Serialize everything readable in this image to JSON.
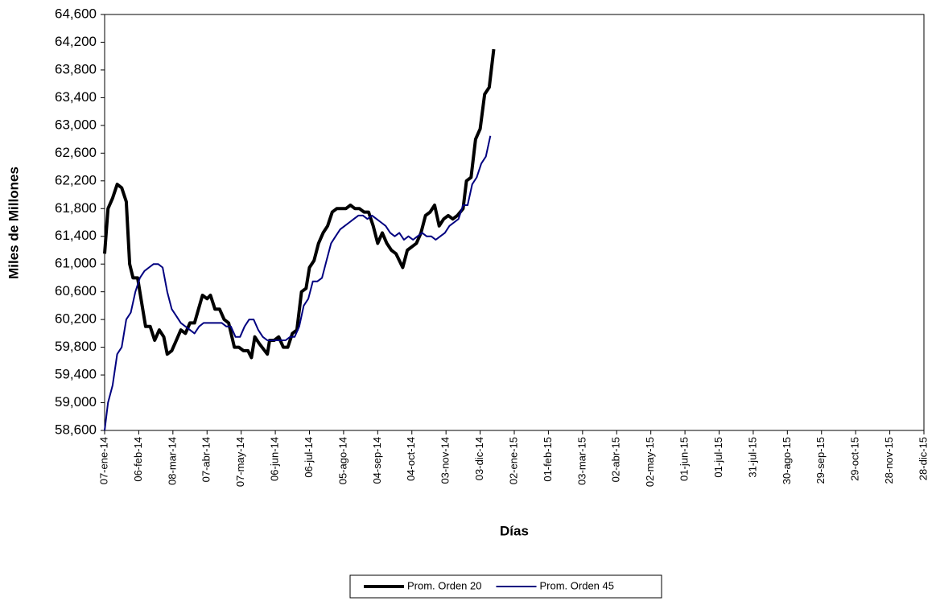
{
  "chart_data": {
    "type": "line",
    "xlabel": "Días",
    "ylabel": "Miles de Millones",
    "xlim": [
      "2014-01-07",
      "2015-12-28"
    ],
    "xticks": [
      {
        "value": "2014-01-07",
        "label": "07-ene-14"
      },
      {
        "value": "2014-02-06",
        "label": "06-feb-14"
      },
      {
        "value": "2014-03-08",
        "label": "08-mar-14"
      },
      {
        "value": "2014-04-07",
        "label": "07-abr-14"
      },
      {
        "value": "2014-05-07",
        "label": "07-may-14"
      },
      {
        "value": "2014-06-06",
        "label": "06-jun-14"
      },
      {
        "value": "2014-07-06",
        "label": "06-jul-14"
      },
      {
        "value": "2014-08-05",
        "label": "05-ago-14"
      },
      {
        "value": "2014-09-04",
        "label": "04-sep-14"
      },
      {
        "value": "2014-10-04",
        "label": "04-oct-14"
      },
      {
        "value": "2014-11-03",
        "label": "03-nov-14"
      },
      {
        "value": "2014-12-03",
        "label": "03-dic-14"
      },
      {
        "value": "2015-01-02",
        "label": "02-ene-15"
      },
      {
        "value": "2015-02-01",
        "label": "01-feb-15"
      },
      {
        "value": "2015-03-03",
        "label": "03-mar-15"
      },
      {
        "value": "2015-04-02",
        "label": "02-abr-15"
      },
      {
        "value": "2015-05-02",
        "label": "02-may-15"
      },
      {
        "value": "2015-06-01",
        "label": "01-jun-15"
      },
      {
        "value": "2015-07-01",
        "label": "01-jul-15"
      },
      {
        "value": "2015-07-31",
        "label": "31-jul-15"
      },
      {
        "value": "2015-08-30",
        "label": "30-ago-15"
      },
      {
        "value": "2015-09-29",
        "label": "29-sep-15"
      },
      {
        "value": "2015-10-29",
        "label": "29-oct-15"
      },
      {
        "value": "2015-11-28",
        "label": "28-nov-15"
      },
      {
        "value": "2015-12-28",
        "label": "28-dic-15"
      }
    ],
    "ylim": [
      58600,
      64600
    ],
    "yticks": [
      {
        "value": 58600,
        "label": "58,600"
      },
      {
        "value": 59000,
        "label": "59,000"
      },
      {
        "value": 59400,
        "label": "59,400"
      },
      {
        "value": 59800,
        "label": "59,800"
      },
      {
        "value": 60200,
        "label": "60,200"
      },
      {
        "value": 60600,
        "label": "60,600"
      },
      {
        "value": 61000,
        "label": "61,000"
      },
      {
        "value": 61400,
        "label": "61,400"
      },
      {
        "value": 61800,
        "label": "61,800"
      },
      {
        "value": 62200,
        "label": "62,200"
      },
      {
        "value": 62600,
        "label": "62,600"
      },
      {
        "value": 63000,
        "label": "63,000"
      },
      {
        "value": 63400,
        "label": "63,400"
      },
      {
        "value": 63800,
        "label": "63,800"
      },
      {
        "value": 64200,
        "label": "64,200"
      },
      {
        "value": 64600,
        "label": "64,600"
      }
    ],
    "grid": false,
    "legend": "bottom",
    "series": [
      {
        "name": "Prom. Orden 20",
        "color": "#000000",
        "width": 4,
        "x": [
          "2014-01-07",
          "2014-01-10",
          "2014-01-14",
          "2014-01-18",
          "2014-01-22",
          "2014-01-26",
          "2014-01-29",
          "2014-02-01",
          "2014-02-05",
          "2014-02-08",
          "2014-02-12",
          "2014-02-16",
          "2014-02-20",
          "2014-02-24",
          "2014-02-28",
          "2014-03-03",
          "2014-03-07",
          "2014-03-11",
          "2014-03-15",
          "2014-03-19",
          "2014-03-23",
          "2014-03-27",
          "2014-04-03",
          "2014-04-07",
          "2014-04-10",
          "2014-04-14",
          "2014-04-18",
          "2014-04-22",
          "2014-04-26",
          "2014-05-01",
          "2014-05-05",
          "2014-05-09",
          "2014-05-13",
          "2014-05-16",
          "2014-05-19",
          "2014-05-23",
          "2014-05-30",
          "2014-06-01",
          "2014-06-05",
          "2014-06-09",
          "2014-06-13",
          "2014-06-17",
          "2014-06-21",
          "2014-06-25",
          "2014-06-29",
          "2014-07-03",
          "2014-07-06",
          "2014-07-10",
          "2014-07-14",
          "2014-07-18",
          "2014-07-22",
          "2014-07-26",
          "2014-07-30",
          "2014-08-03",
          "2014-08-07",
          "2014-08-11",
          "2014-08-15",
          "2014-08-19",
          "2014-08-23",
          "2014-08-27",
          "2014-08-31",
          "2014-09-04",
          "2014-09-08",
          "2014-09-12",
          "2014-09-16",
          "2014-09-20",
          "2014-09-26",
          "2014-09-30",
          "2014-10-04",
          "2014-10-08",
          "2014-10-12",
          "2014-10-16",
          "2014-10-20",
          "2014-10-24",
          "2014-10-28",
          "2014-11-01",
          "2014-11-05",
          "2014-11-09",
          "2014-11-13",
          "2014-11-18",
          "2014-11-21",
          "2014-11-25",
          "2014-11-29",
          "2014-12-03",
          "2014-12-07",
          "2014-12-11",
          "2014-12-15"
        ],
        "values": [
          61150,
          61800,
          61950,
          62150,
          62100,
          61900,
          61000,
          60800,
          60800,
          60500,
          60100,
          60100,
          59900,
          60050,
          59950,
          59700,
          59750,
          59900,
          60050,
          60000,
          60150,
          60150,
          60550,
          60500,
          60550,
          60350,
          60350,
          60200,
          60150,
          59800,
          59800,
          59750,
          59750,
          59650,
          59950,
          59850,
          59700,
          59900,
          59900,
          59950,
          59800,
          59800,
          60000,
          60050,
          60600,
          60650,
          60950,
          61050,
          61300,
          61450,
          61550,
          61750,
          61800,
          61800,
          61800,
          61850,
          61800,
          61800,
          61750,
          61750,
          61550,
          61300,
          61450,
          61300,
          61200,
          61150,
          60950,
          61200,
          61250,
          61300,
          61450,
          61700,
          61750,
          61850,
          61550,
          61650,
          61700,
          61650,
          61700,
          61800,
          62200,
          62250,
          62800,
          62950,
          63450,
          63550,
          64100
        ]
      },
      {
        "name": "Prom. Orden 45",
        "color": "#000080",
        "width": 2,
        "x": [
          "2014-01-07",
          "2014-01-10",
          "2014-01-14",
          "2014-01-18",
          "2014-01-22",
          "2014-01-26",
          "2014-01-30",
          "2014-02-03",
          "2014-02-07",
          "2014-02-11",
          "2014-02-15",
          "2014-02-19",
          "2014-02-23",
          "2014-02-27",
          "2014-03-03",
          "2014-03-07",
          "2014-03-11",
          "2014-03-15",
          "2014-03-19",
          "2014-03-23",
          "2014-03-27",
          "2014-03-31",
          "2014-04-04",
          "2014-04-08",
          "2014-04-12",
          "2014-04-16",
          "2014-04-20",
          "2014-04-24",
          "2014-04-28",
          "2014-05-02",
          "2014-05-06",
          "2014-05-10",
          "2014-05-14",
          "2014-05-18",
          "2014-05-22",
          "2014-05-26",
          "2014-05-30",
          "2014-06-03",
          "2014-06-07",
          "2014-06-11",
          "2014-06-15",
          "2014-06-19",
          "2014-06-23",
          "2014-06-27",
          "2014-07-01",
          "2014-07-05",
          "2014-07-09",
          "2014-07-13",
          "2014-07-17",
          "2014-07-21",
          "2014-07-25",
          "2014-07-29",
          "2014-08-02",
          "2014-08-06",
          "2014-08-10",
          "2014-08-14",
          "2014-08-18",
          "2014-08-22",
          "2014-08-26",
          "2014-08-30",
          "2014-09-03",
          "2014-09-07",
          "2014-09-11",
          "2014-09-15",
          "2014-09-19",
          "2014-09-23",
          "2014-09-27",
          "2014-10-01",
          "2014-10-05",
          "2014-10-09",
          "2014-10-13",
          "2014-10-17",
          "2014-10-21",
          "2014-10-25",
          "2014-10-29",
          "2014-11-02",
          "2014-11-06",
          "2014-11-10",
          "2014-11-14",
          "2014-11-18",
          "2014-11-22",
          "2014-11-26",
          "2014-11-30",
          "2014-12-04",
          "2014-12-08",
          "2014-12-12"
        ],
        "values": [
          58600,
          59000,
          59250,
          59700,
          59800,
          60200,
          60300,
          60600,
          60800,
          60900,
          60950,
          61000,
          61000,
          60950,
          60600,
          60350,
          60250,
          60150,
          60100,
          60050,
          60000,
          60100,
          60150,
          60150,
          60150,
          60150,
          60150,
          60100,
          60100,
          59950,
          59950,
          60100,
          60200,
          60200,
          60050,
          59950,
          59900,
          59900,
          59900,
          59900,
          59900,
          59950,
          59950,
          60100,
          60400,
          60500,
          60750,
          60750,
          60800,
          61050,
          61300,
          61400,
          61500,
          61550,
          61600,
          61650,
          61700,
          61700,
          61650,
          61700,
          61650,
          61600,
          61550,
          61450,
          61400,
          61450,
          61350,
          61400,
          61350,
          61400,
          61450,
          61400,
          61400,
          61350,
          61400,
          61450,
          61550,
          61600,
          61650,
          61850,
          61850,
          62150,
          62250,
          62450,
          62550,
          62850
        ]
      }
    ]
  }
}
